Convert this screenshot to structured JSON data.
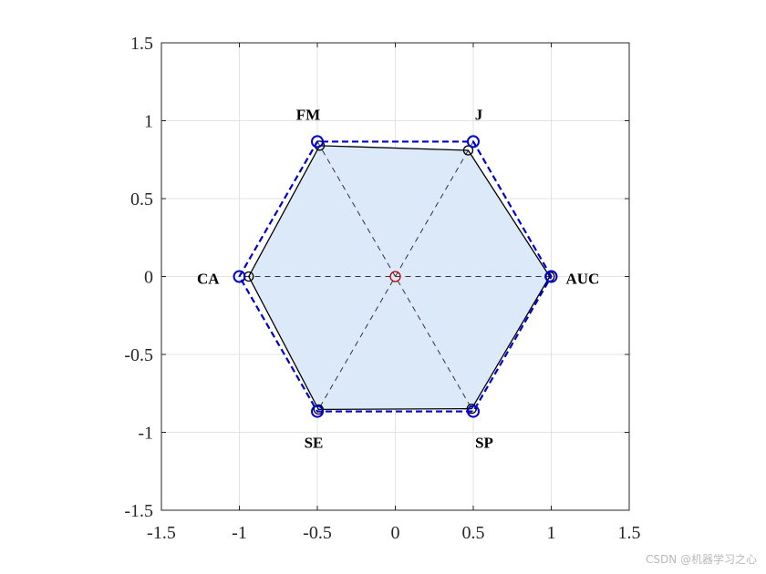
{
  "chart_data": {
    "type": "radar-hexagon",
    "axes": {
      "xlim": [
        -1.5,
        1.5
      ],
      "ylim": [
        -1.5,
        1.5
      ],
      "xticks": [
        "-1.5",
        "-1",
        "-0.5",
        "0",
        "0.5",
        "1",
        "1.5"
      ],
      "yticks": [
        "1.5",
        "1",
        "0.5",
        "0",
        "-0.5",
        "-1",
        "-1.5"
      ],
      "grid": true
    },
    "vertices": [
      {
        "label": "AUC",
        "x": 1.0,
        "y": 0.0
      },
      {
        "label": "J",
        "x": 0.5,
        "y": 0.866
      },
      {
        "label": "FM",
        "x": -0.5,
        "y": 0.866
      },
      {
        "label": "CA",
        "x": -1.0,
        "y": 0.0
      },
      {
        "label": "SE",
        "x": -0.5,
        "y": -0.866
      },
      {
        "label": "SP",
        "x": 0.5,
        "y": -0.866
      }
    ],
    "series": [
      {
        "values": [
          0.99,
          0.935,
          0.97,
          0.94,
          0.985,
          0.98
        ],
        "fill": "#dce9f8",
        "stroke": "#000000",
        "marker": "open-circle-small"
      },
      {
        "values": [
          1.0,
          1.0,
          1.0,
          1.0,
          1.0,
          1.0
        ],
        "stroke": "#0000cc",
        "dashed": true,
        "marker": "open-circle"
      }
    ],
    "center_marker": {
      "x": 0,
      "y": 0,
      "color": "#c00000"
    },
    "spokes": {
      "style": "dashed",
      "color": "#333333"
    }
  },
  "watermark": "CSDN @机器学习之心"
}
